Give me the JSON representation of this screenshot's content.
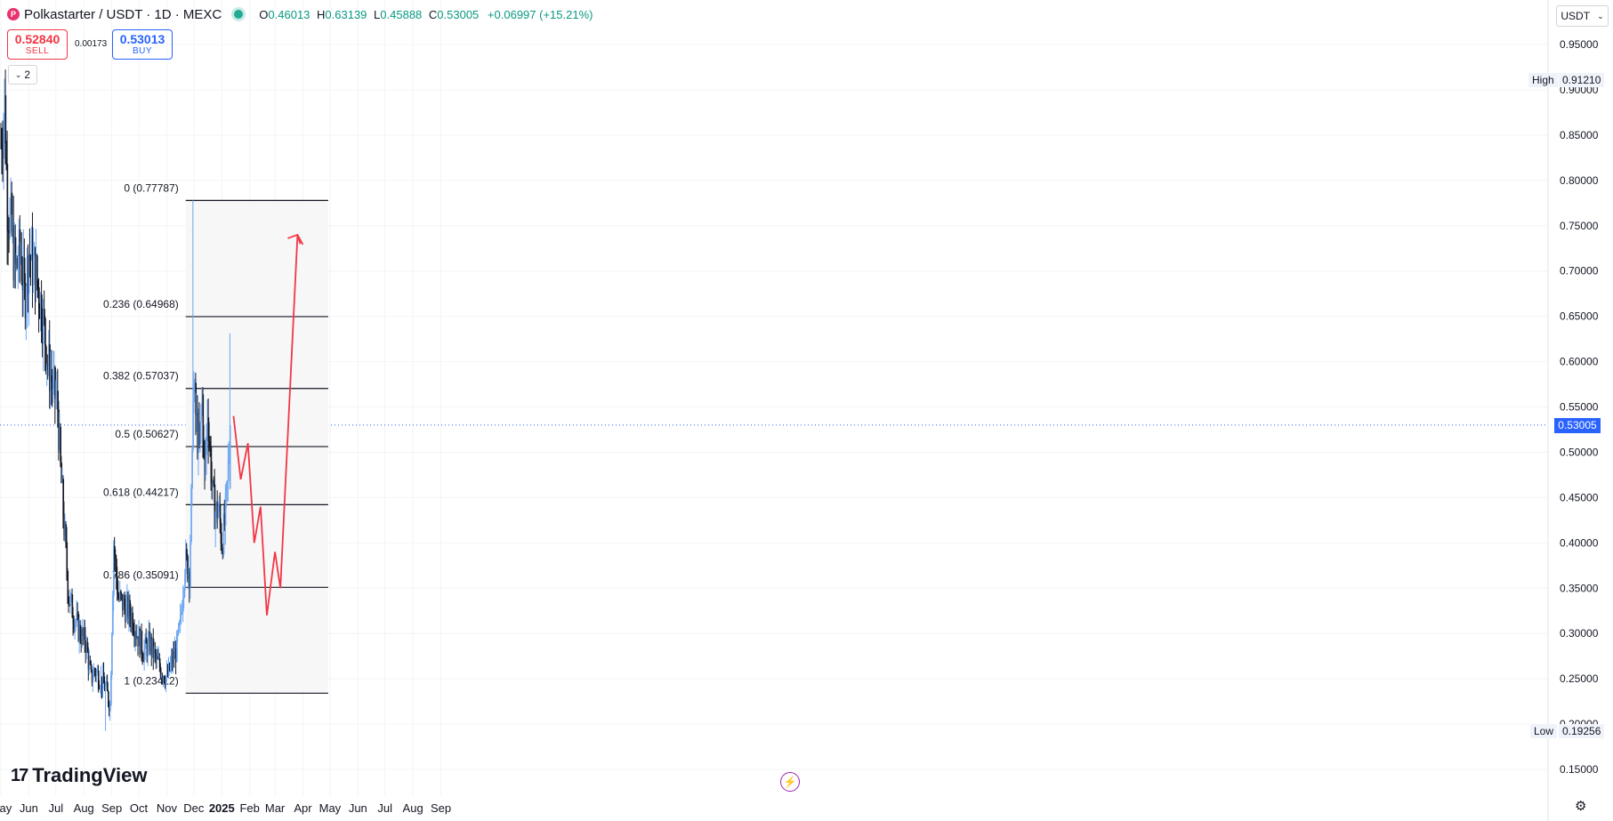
{
  "header": {
    "symbol": "Polkastarter / USDT · 1D · MEXC",
    "logo_icon": "polkastarter-logo-icon",
    "open_label": "O",
    "open": "0.46013",
    "high_label": "H",
    "high": "0.63139",
    "low_label": "L",
    "low": "0.45888",
    "close_label": "C",
    "close": "0.53005",
    "change": "+0.06997 (+15.21%)",
    "collapse_label": "2"
  },
  "trading": {
    "sell_price": "0.52840",
    "sell_label": "SELL",
    "spread": "0.00173",
    "buy_price": "0.53013",
    "buy_label": "BUY"
  },
  "currency_selector": "USDT",
  "branding": "TradingView",
  "colors": {
    "up_candle": "#6ea6f0",
    "down_candle": "#131722",
    "projection": "#f23645",
    "fib_line": "#131722",
    "fib_zone": "#f7f7f8",
    "price_line": "#2962ff"
  },
  "chart_data": {
    "type": "candlestick",
    "ylim": [
      0.13,
      0.99
    ],
    "y_ticks": [
      "0.95000",
      "0.90000",
      "0.85000",
      "0.80000",
      "0.75000",
      "0.70000",
      "0.65000",
      "0.60000",
      "0.55000",
      "0.50000",
      "0.45000",
      "0.40000",
      "0.35000",
      "0.30000",
      "0.25000",
      "0.20000",
      "0.15000"
    ],
    "x_ticks": [
      "May",
      "Jun",
      "Jul",
      "Aug",
      "Sep",
      "Oct",
      "Nov",
      "Dec",
      "2025",
      "Feb",
      "Mar",
      "Apr",
      "May",
      "Jun",
      "Jul",
      "Aug",
      "Sep"
    ],
    "x_tick_days": [
      0,
      31,
      61,
      92,
      123,
      153,
      184,
      214,
      245,
      276,
      304,
      335,
      365,
      396,
      426,
      457,
      488
    ],
    "start_date": "2024-04-17",
    "high_marker": {
      "label": "High",
      "value": "0.91210"
    },
    "low_marker": {
      "label": "Low",
      "value": "0.19256"
    },
    "last_price": "0.53005",
    "anchors": [
      [
        0,
        0.84
      ],
      [
        4,
        0.88
      ],
      [
        7,
        0.78
      ],
      [
        11,
        0.75
      ],
      [
        16,
        0.7
      ],
      [
        22,
        0.72
      ],
      [
        26,
        0.67
      ],
      [
        31,
        0.72
      ],
      [
        38,
        0.7
      ],
      [
        45,
        0.66
      ],
      [
        52,
        0.6
      ],
      [
        58,
        0.57
      ],
      [
        63,
        0.55
      ],
      [
        66,
        0.48
      ],
      [
        70,
        0.42
      ],
      [
        75,
        0.34
      ],
      [
        78,
        0.33
      ],
      [
        84,
        0.31
      ],
      [
        88,
        0.3
      ],
      [
        94,
        0.29
      ],
      [
        100,
        0.25
      ],
      [
        104,
        0.26
      ],
      [
        110,
        0.25
      ],
      [
        116,
        0.24
      ],
      [
        121,
        0.22
      ],
      [
        125,
        0.4
      ],
      [
        130,
        0.34
      ],
      [
        137,
        0.33
      ],
      [
        145,
        0.32
      ],
      [
        151,
        0.3
      ],
      [
        158,
        0.28
      ],
      [
        165,
        0.29
      ],
      [
        172,
        0.27
      ],
      [
        178,
        0.26
      ],
      [
        184,
        0.25
      ],
      [
        190,
        0.27
      ],
      [
        194,
        0.28
      ],
      [
        199,
        0.31
      ],
      [
        204,
        0.38
      ],
      [
        209,
        0.37
      ],
      [
        212,
        0.48
      ],
      [
        213,
        0.58
      ],
      [
        216,
        0.54
      ],
      [
        220,
        0.5
      ],
      [
        223,
        0.56
      ],
      [
        226,
        0.47
      ],
      [
        229,
        0.55
      ],
      [
        232,
        0.5
      ],
      [
        235,
        0.45
      ],
      [
        238,
        0.43
      ],
      [
        241,
        0.44
      ],
      [
        245,
        0.4
      ],
      [
        248,
        0.42
      ],
      [
        251,
        0.46
      ],
      [
        254,
        0.53
      ]
    ],
    "fibonacci": [
      {
        "label": "0 (0.77787)",
        "value": 0.77787
      },
      {
        "label": "0.236 (0.64968)",
        "value": 0.64968
      },
      {
        "label": "0.382 (0.57037)",
        "value": 0.57037
      },
      {
        "label": "0.5 (0.50627)",
        "value": 0.50627
      },
      {
        "label": "0.618 (0.44217)",
        "value": 0.44217
      },
      {
        "label": "0.786 (0.35091)",
        "value": 0.35091
      },
      {
        "label": "1 (0.23412)",
        "value": 0.23412
      }
    ],
    "fib_day_range": [
      205,
      363
    ],
    "projection": [
      [
        258,
        0.54
      ],
      [
        266,
        0.47
      ],
      [
        274,
        0.51
      ],
      [
        281,
        0.4
      ],
      [
        288,
        0.44
      ],
      [
        295,
        0.32
      ],
      [
        304,
        0.39
      ],
      [
        310,
        0.35
      ],
      [
        329,
        0.74
      ],
      [
        332,
        0.73
      ]
    ]
  }
}
